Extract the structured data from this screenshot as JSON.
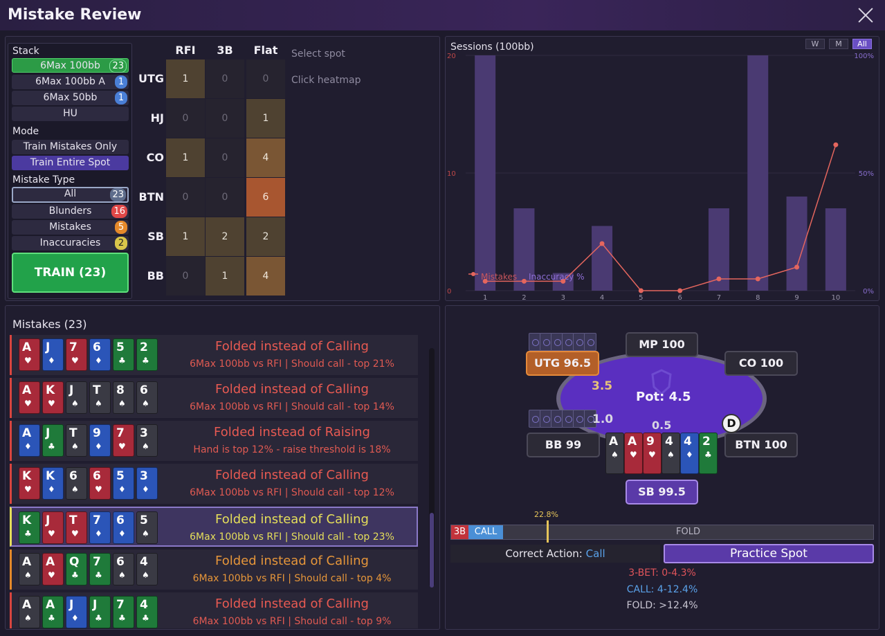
{
  "window": {
    "title": "Mistake Review"
  },
  "stack": {
    "label": "Stack",
    "options": [
      {
        "label": "6Max 100bb",
        "count": "23"
      },
      {
        "label": "6Max 100bb A",
        "count": "1"
      },
      {
        "label": "6Max 50bb",
        "count": "1"
      },
      {
        "label": "HU",
        "count": ""
      }
    ]
  },
  "mode": {
    "label": "Mode",
    "options": [
      "Train Mistakes Only",
      "Train Entire Spot"
    ]
  },
  "mistake_type": {
    "label": "Mistake Type",
    "options": [
      {
        "label": "All",
        "count": "23"
      },
      {
        "label": "Blunders",
        "count": "16"
      },
      {
        "label": "Mistakes",
        "count": "5"
      },
      {
        "label": "Inaccuracies",
        "count": "2"
      }
    ]
  },
  "train_button": "TRAIN (23)",
  "heatmap": {
    "columns": [
      "RFI",
      "3B",
      "Flat"
    ],
    "rows": [
      {
        "pos": "UTG",
        "values": [
          "1",
          "0",
          "0"
        ]
      },
      {
        "pos": "HJ",
        "values": [
          "0",
          "0",
          "1"
        ]
      },
      {
        "pos": "CO",
        "values": [
          "1",
          "0",
          "4"
        ]
      },
      {
        "pos": "BTN",
        "values": [
          "0",
          "0",
          "6"
        ]
      },
      {
        "pos": "SB",
        "values": [
          "1",
          "2",
          "2"
        ]
      },
      {
        "pos": "BB",
        "values": [
          "0",
          "1",
          "4"
        ]
      }
    ],
    "hint1": "Select spot",
    "hint2": "Click heatmap"
  },
  "chart_data": {
    "type": "bar",
    "title": "Sessions (100bb)",
    "categories": [
      "1",
      "2",
      "3",
      "4",
      "5",
      "6",
      "7",
      "8",
      "9",
      "10"
    ],
    "series": [
      {
        "name": "Mistakes",
        "values": [
          20,
          7,
          1.5,
          5.5,
          0,
          0,
          7,
          20,
          8,
          7
        ]
      },
      {
        "name": "Inaccuracy %",
        "values": [
          4,
          4,
          4,
          20,
          0,
          0,
          5,
          5,
          10,
          62
        ]
      }
    ],
    "y_left_ticks": [
      "0",
      "10",
      "20"
    ],
    "y_right_ticks": [
      "0%",
      "50%",
      "100%"
    ],
    "ylim": [
      0,
      20
    ],
    "y2lim": [
      0,
      100
    ],
    "legend": [
      "Mistakes",
      "Inaccuracy %"
    ],
    "range_buttons": [
      "W",
      "M",
      "All"
    ],
    "colors": {
      "bar": "#4a3a72",
      "line": "#e5665e"
    }
  },
  "mistakes": {
    "title": "Mistakes (23)",
    "items": [
      {
        "cards": [
          [
            "A",
            "♥",
            "h"
          ],
          [
            "J",
            "♦",
            "d"
          ],
          [
            "7",
            "♥",
            "h"
          ],
          [
            "6",
            "♦",
            "d"
          ],
          [
            "5",
            "♣",
            "c"
          ],
          [
            "2",
            "♣",
            "c"
          ]
        ],
        "line1": "Folded instead of Calling",
        "line2": "6Max 100bb vs RFI | Should call - top 21%"
      },
      {
        "cards": [
          [
            "A",
            "♥",
            "h"
          ],
          [
            "K",
            "♥",
            "h"
          ],
          [
            "J",
            "♠",
            "s"
          ],
          [
            "T",
            "♠",
            "s"
          ],
          [
            "8",
            "♠",
            "s"
          ],
          [
            "6",
            "♠",
            "s"
          ]
        ],
        "line1": "Folded instead of Calling",
        "line2": "6Max 100bb vs RFI | Should call - top 14%"
      },
      {
        "cards": [
          [
            "A",
            "♦",
            "d"
          ],
          [
            "J",
            "♣",
            "c"
          ],
          [
            "T",
            "♠",
            "s"
          ],
          [
            "9",
            "♦",
            "d"
          ],
          [
            "7",
            "♥",
            "h"
          ],
          [
            "3",
            "♠",
            "s"
          ]
        ],
        "line1": "Folded instead of Raising",
        "line2": "Hand is top 12% - raise threshold is 18%"
      },
      {
        "cards": [
          [
            "K",
            "♥",
            "h"
          ],
          [
            "K",
            "♦",
            "d"
          ],
          [
            "6",
            "♠",
            "s"
          ],
          [
            "6",
            "♥",
            "h"
          ],
          [
            "5",
            "♦",
            "d"
          ],
          [
            "3",
            "♦",
            "d"
          ]
        ],
        "line1": "Folded instead of Calling",
        "line2": "6Max 100bb vs RFI | Should call - top 12%"
      },
      {
        "cards": [
          [
            "K",
            "♣",
            "c"
          ],
          [
            "J",
            "♥",
            "h"
          ],
          [
            "T",
            "♥",
            "h"
          ],
          [
            "7",
            "♦",
            "d"
          ],
          [
            "6",
            "♦",
            "d"
          ],
          [
            "5",
            "♠",
            "s"
          ]
        ],
        "line1": "Folded instead of Calling",
        "line2": "6Max 100bb vs RFI | Should call - top 23%"
      },
      {
        "cards": [
          [
            "A",
            "♠",
            "s"
          ],
          [
            "A",
            "♥",
            "h"
          ],
          [
            "Q",
            "♣",
            "c"
          ],
          [
            "7",
            "♣",
            "c"
          ],
          [
            "6",
            "♠",
            "s"
          ],
          [
            "4",
            "♠",
            "s"
          ]
        ],
        "line1": "Folded instead of Calling",
        "line2": "6Max 100bb vs RFI | Should call - top 4%"
      },
      {
        "cards": [
          [
            "A",
            "♠",
            "s"
          ],
          [
            "A",
            "♣",
            "c"
          ],
          [
            "J",
            "♦",
            "d"
          ],
          [
            "J",
            "♣",
            "c"
          ],
          [
            "7",
            "♣",
            "c"
          ],
          [
            "4",
            "♣",
            "c"
          ]
        ],
        "line1": "Folded instead of Calling",
        "line2": "6Max 100bb vs RFI | Should call - top 9%"
      }
    ]
  },
  "table": {
    "seats": {
      "mp": "MP  100",
      "co": "CO  100",
      "utg": "UTG  96.5",
      "bb": "BB  99",
      "btn": "BTN  100",
      "sb": "SB  99.5"
    },
    "pot": "Pot: 4.5",
    "bet_utg": "3.5",
    "bet_bb": "1.0",
    "bet_sb": "0.5",
    "dealer": "D",
    "hero_cards": [
      [
        "A",
        "♠",
        "s"
      ],
      [
        "A",
        "♥",
        "h"
      ],
      [
        "9",
        "♥",
        "h"
      ],
      [
        "4",
        "♠",
        "s"
      ],
      [
        "4",
        "♦",
        "d"
      ],
      [
        "2",
        "♣",
        "c"
      ]
    ]
  },
  "action_bar": {
    "threebet_label": "3B",
    "call_label": "CALL",
    "fold_label": "FOLD",
    "marker_label": "22.8%",
    "marker_value_pct": 22.8
  },
  "correct_action": {
    "label": "Correct Action:",
    "value": "Call"
  },
  "practice_button": "Practice Spot",
  "thresholds": {
    "threebet": "3-BET: 0-4.3%",
    "call": "CALL: 4-12.4%",
    "fold": "FOLD: >12.4%"
  }
}
